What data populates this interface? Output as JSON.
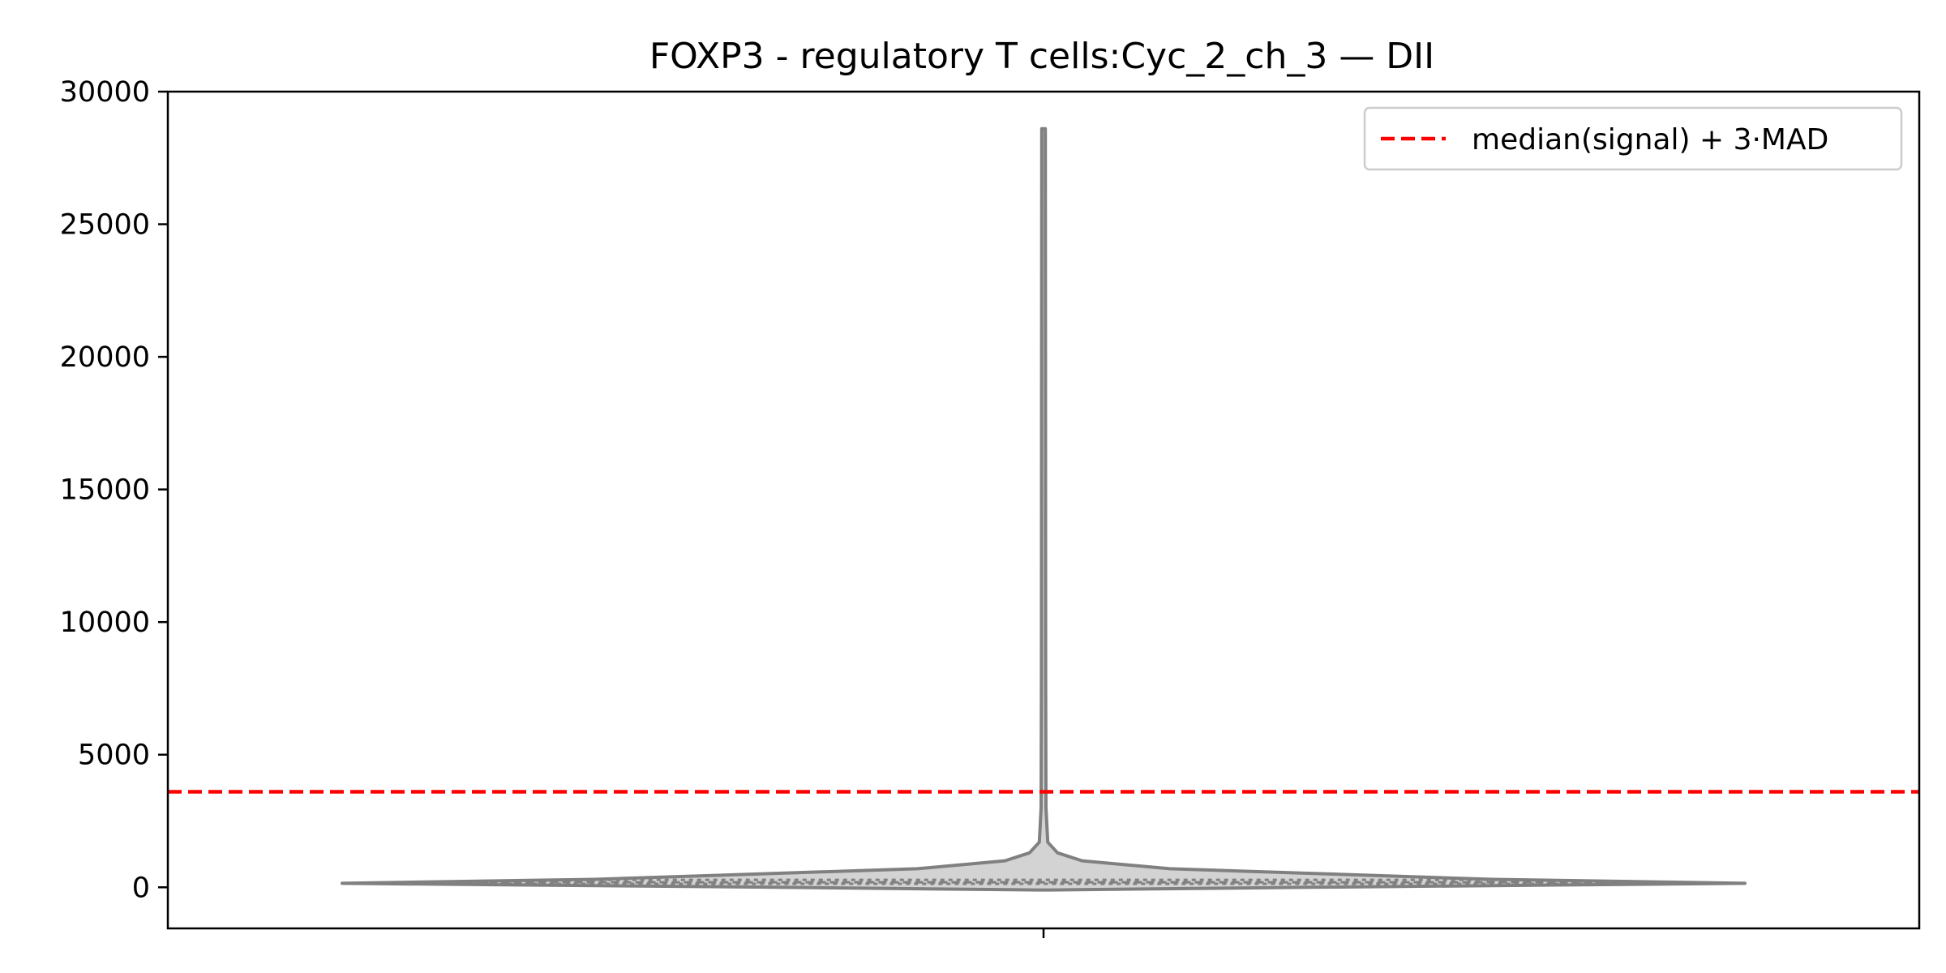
{
  "chart_data": {
    "type": "violin",
    "title": "FOXP3 - regulatory T cells:Cyc_2_ch_3 — DII",
    "xlabel": "",
    "ylabel": "",
    "ylim": [
      -1550,
      30000
    ],
    "yticks": [
      0,
      5000,
      10000,
      15000,
      20000,
      25000,
      30000
    ],
    "ytick_labels": [
      "0",
      "5000",
      "10000",
      "15000",
      "20000",
      "25000",
      "30000"
    ],
    "grid": false,
    "legend": {
      "placement": "top-right",
      "entries": [
        {
          "label": "median(signal) + 3·MAD",
          "style": "dashed",
          "color": "#ff0000"
        }
      ]
    },
    "threshold_line": {
      "label": "median(signal) + 3·MAD",
      "y": 3600,
      "color": "#ff0000"
    },
    "violin": {
      "fill_color": "#d3d3d3",
      "edge_color": "#808080",
      "min": -100,
      "max": 28600,
      "quartiles": [
        130,
        190,
        280
      ],
      "profile": [
        {
          "y": -100,
          "w": 0.01
        },
        {
          "y": 0,
          "w": 0.38
        },
        {
          "y": 150,
          "w": 1.0
        },
        {
          "y": 300,
          "w": 0.64
        },
        {
          "y": 700,
          "w": 0.18
        },
        {
          "y": 1000,
          "w": 0.055
        },
        {
          "y": 1300,
          "w": 0.02
        },
        {
          "y": 1700,
          "w": 0.006
        },
        {
          "y": 3000,
          "w": 0.0035
        },
        {
          "y": 8000,
          "w": 0.003
        },
        {
          "y": 20000,
          "w": 0.0028
        },
        {
          "y": 28600,
          "w": 0.0025
        }
      ]
    }
  }
}
